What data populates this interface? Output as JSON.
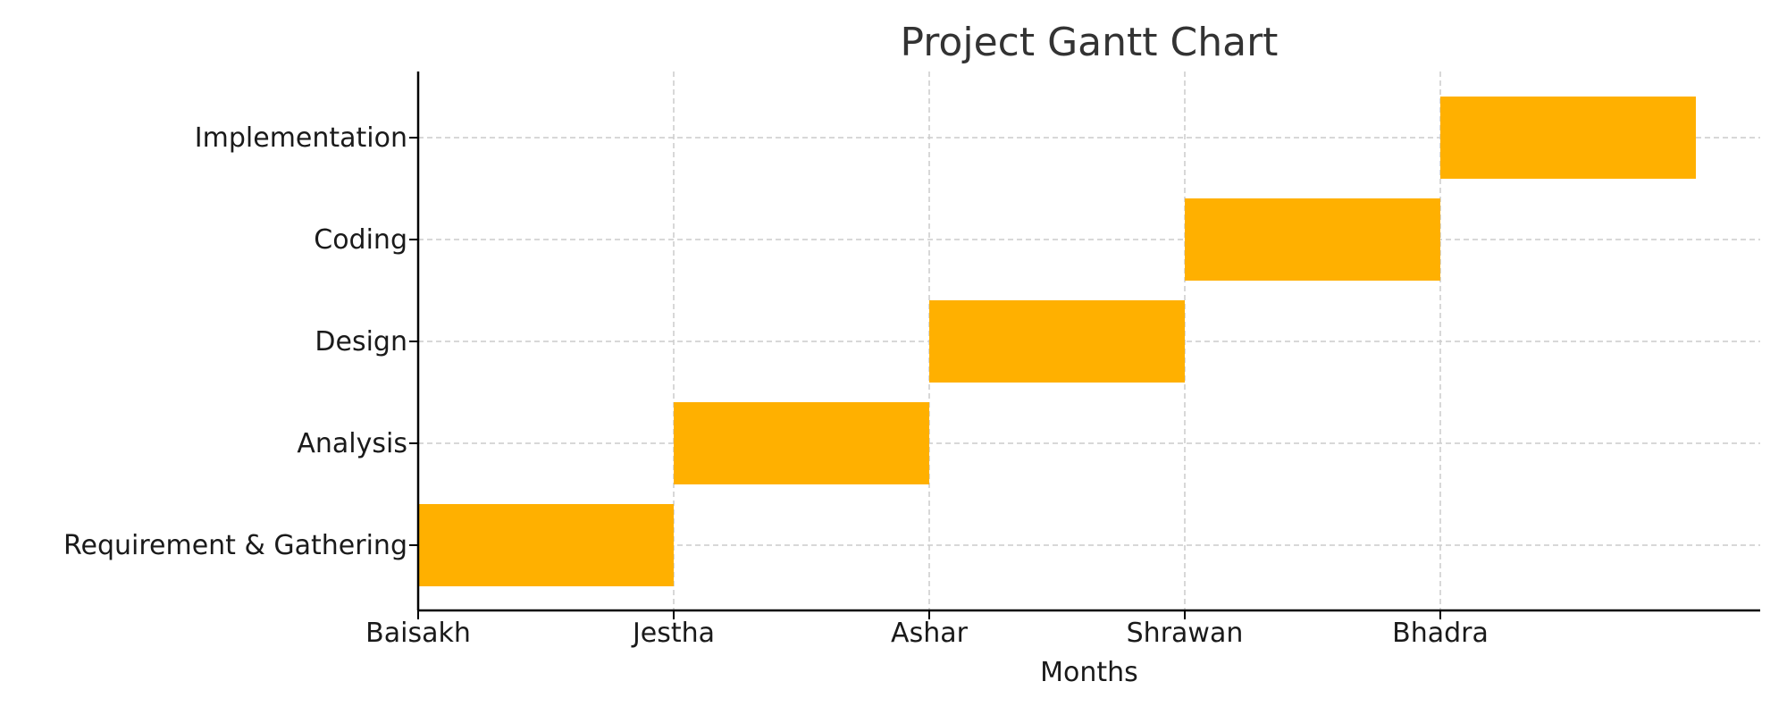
{
  "chart_data": {
    "type": "gantt",
    "title": "Project Gantt Chart",
    "xlabel": "Months",
    "ylabel": "",
    "x_ticks": [
      "Baisakh",
      "Jestha",
      "Ashar",
      "Shrawan",
      "Bhadra"
    ],
    "xlim": [
      0,
      5
    ],
    "tasks": [
      {
        "name": "Requirement & Gathering",
        "start": 0,
        "end": 1
      },
      {
        "name": "Analysis",
        "start": 1,
        "end": 2
      },
      {
        "name": "Design",
        "start": 2,
        "end": 3
      },
      {
        "name": "Coding",
        "start": 3,
        "end": 4
      },
      {
        "name": "Implementation",
        "start": 4,
        "end": 5
      }
    ],
    "bar_color": "#FFB000",
    "grid": true
  }
}
